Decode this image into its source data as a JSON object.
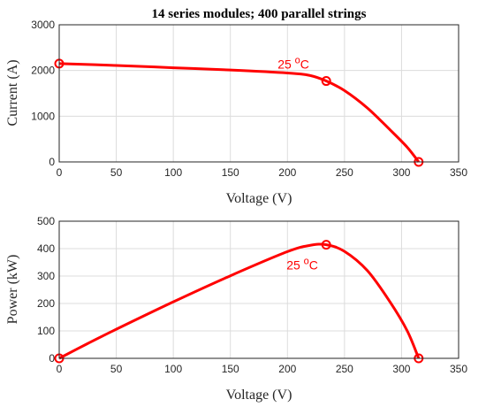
{
  "chart_data": [
    {
      "type": "line",
      "title": "14 series modules; 400 parallel strings",
      "xlabel": "Voltage (V)",
      "ylabel": "Current (A)",
      "xlim": [
        0,
        350
      ],
      "ylim": [
        0,
        3000
      ],
      "xticks": [
        "0",
        "50",
        "100",
        "150",
        "200",
        "250",
        "300",
        "350"
      ],
      "yticks": [
        "0",
        "1000",
        "2000",
        "3000"
      ],
      "grid": true,
      "series": [
        {
          "color": "#ff0000",
          "x": [
            0,
            50,
            100,
            150,
            200,
            220,
            234,
            250,
            270,
            290,
            305,
            315
          ],
          "y": [
            2150,
            2110,
            2060,
            2010,
            1945,
            1890,
            1770,
            1560,
            1180,
            700,
            320,
            0
          ]
        }
      ],
      "markers": [
        {
          "x": 0,
          "y": 2150
        },
        {
          "x": 234,
          "y": 1770
        },
        {
          "x": 315,
          "y": 0
        }
      ],
      "annotation": {
        "text": "25 ",
        "sup": "o",
        "tail": "C",
        "x": 234,
        "y": 1770,
        "color": "#ff0000"
      }
    },
    {
      "type": "line",
      "title": "",
      "xlabel": "Voltage (V)",
      "ylabel": "Power (kW)",
      "xlim": [
        0,
        350
      ],
      "ylim": [
        0,
        500
      ],
      "xticks": [
        "0",
        "50",
        "100",
        "150",
        "200",
        "250",
        "300",
        "350"
      ],
      "yticks": [
        "0",
        "100",
        "200",
        "300",
        "400",
        "500"
      ],
      "grid": true,
      "series": [
        {
          "color": "#ff0000",
          "x": [
            0,
            25,
            50,
            100,
            150,
            200,
            220,
            234,
            250,
            270,
            290,
            305,
            315
          ],
          "y": [
            0,
            54,
            106,
            206,
            301,
            389,
            412,
            414,
            390,
            320,
            205,
            100,
            0
          ]
        }
      ],
      "markers": [
        {
          "x": 0,
          "y": 0
        },
        {
          "x": 234,
          "y": 414
        },
        {
          "x": 315,
          "y": 0
        }
      ],
      "annotation": {
        "text": "25 ",
        "sup": "o",
        "tail": "C",
        "x": 234,
        "y": 414,
        "color": "#ff0000"
      }
    }
  ]
}
